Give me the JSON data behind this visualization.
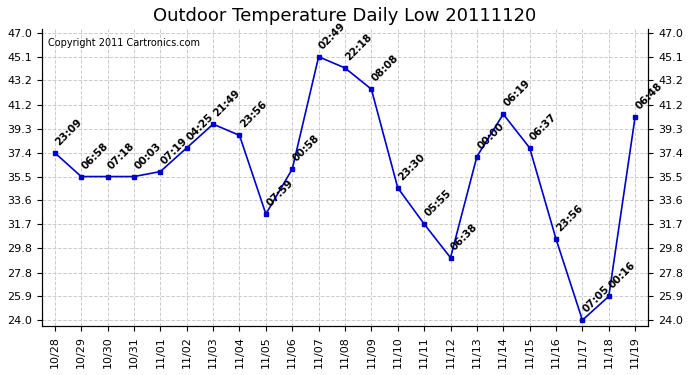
{
  "title": "Outdoor Temperature Daily Low 20111120",
  "copyright": "Copyright 2011 Cartronics.com",
  "x_labels": [
    "10/28",
    "10/29",
    "10/30",
    "10/31",
    "11/01",
    "11/02",
    "11/03",
    "11/04",
    "11/05",
    "11/06",
    "11/07",
    "11/08",
    "11/09",
    "11/10",
    "11/11",
    "11/12",
    "11/13",
    "11/14",
    "11/15",
    "11/16",
    "11/17",
    "11/18",
    "11/19"
  ],
  "time_labels": [
    "23:09",
    "06:58",
    "07:18",
    "00:03",
    "07:19",
    "04:25",
    "21:49",
    "23:56",
    "07:59",
    "00:58",
    "02:49",
    "22:18",
    "08:08",
    "23:30",
    "05:55",
    "06:38",
    "00:00",
    "06:19",
    "06:37",
    "23:56",
    "07:05",
    "00:16",
    "06:48"
  ],
  "y_values": [
    37.4,
    35.5,
    35.5,
    35.5,
    35.9,
    37.8,
    39.7,
    38.8,
    32.5,
    36.1,
    45.1,
    44.2,
    42.5,
    34.6,
    31.7,
    29.0,
    37.1,
    40.5,
    37.8,
    30.5,
    24.0,
    25.9,
    40.3
  ],
  "y_ticks": [
    24.0,
    25.9,
    27.8,
    29.8,
    31.7,
    33.6,
    35.5,
    37.4,
    39.3,
    41.2,
    43.2,
    45.1,
    47.0
  ],
  "line_color": "#0000cc",
  "marker_color": "#0000cc",
  "bg_color": "#ffffff",
  "grid_color": "#cccccc",
  "title_fontsize": 13,
  "label_fontsize": 8,
  "tick_fontsize": 8,
  "annotation_fontsize": 7.5
}
